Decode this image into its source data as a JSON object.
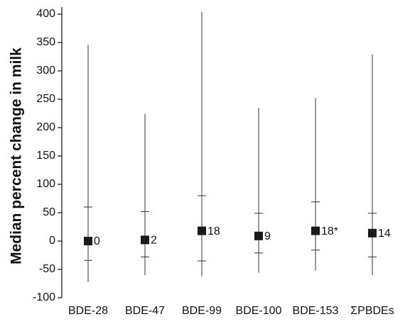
{
  "chart_data": {
    "type": "median_range",
    "y_label": "Median percent change in milk",
    "categories": [
      "BDE-28",
      "BDE-47",
      "BDE-99",
      "BDE-100",
      "BDE-153",
      "ΣPBDEs"
    ],
    "values": [
      0,
      2,
      18,
      9,
      18,
      14
    ],
    "value_labels": [
      "0",
      "2",
      "18",
      "9",
      "18*",
      "14"
    ],
    "upper": [
      60,
      52,
      80,
      49,
      69,
      49
    ],
    "lower": [
      -34,
      -28,
      -35,
      -21,
      -16,
      -28
    ],
    "whisker_max": [
      346,
      224,
      404,
      235,
      252,
      329
    ],
    "whisker_min": [
      -72,
      -60,
      -62,
      -56,
      -52,
      -60
    ],
    "color": "#1a1a1a",
    "ylim": [
      -100,
      400
    ],
    "yticks": [
      -100,
      -50,
      0,
      50,
      100,
      150,
      200,
      250,
      300,
      350,
      400
    ]
  }
}
